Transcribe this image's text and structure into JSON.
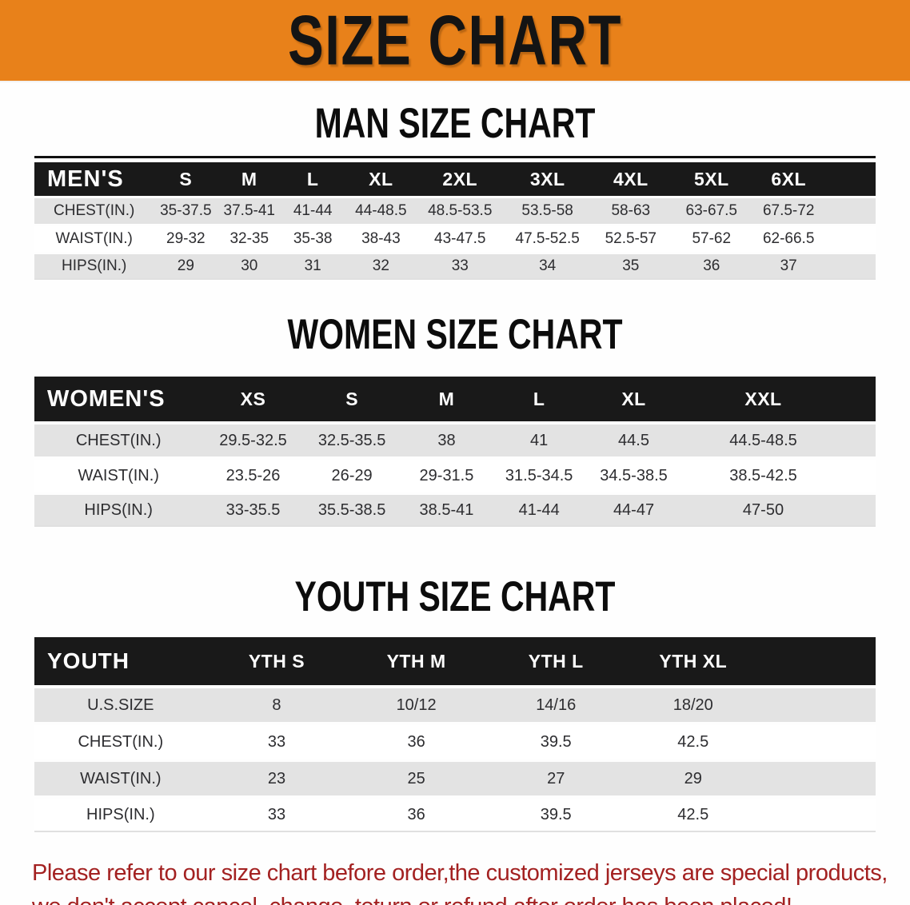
{
  "colors": {
    "banner_bg": "#e8811a",
    "bar_bg": "#191919",
    "stripe": "#e3e3e3",
    "footer_text": "#a32121"
  },
  "banner": {
    "title": "SIZE CHART"
  },
  "sections": [
    {
      "heading": "MAN SIZE CHART",
      "table": {
        "label_header": "MEN'S",
        "columns": [
          "S",
          "M",
          "L",
          "XL",
          "2XL",
          "3XL",
          "4XL",
          "5XL",
          "6XL"
        ],
        "rows": [
          {
            "label": "CHEST(IN.)",
            "values": [
              "35-37.5",
              "37.5-41",
              "41-44",
              "44-48.5",
              "48.5-53.5",
              "53.5-58",
              "58-63",
              "63-67.5",
              "67.5-72"
            ]
          },
          {
            "label": "WAIST(IN.)",
            "values": [
              "29-32",
              "32-35",
              "35-38",
              "38-43",
              "43-47.5",
              "47.5-52.5",
              "52.5-57",
              "57-62",
              "62-66.5"
            ]
          },
          {
            "label": "HIPS(IN.)",
            "values": [
              "29",
              "30",
              "31",
              "32",
              "33",
              "34",
              "35",
              "36",
              "37"
            ]
          }
        ]
      }
    },
    {
      "heading": "WOMEN SIZE CHART",
      "table": {
        "label_header": "WOMEN'S",
        "columns": [
          "XS",
          "S",
          "M",
          "L",
          "XL",
          "XXL"
        ],
        "rows": [
          {
            "label": "CHEST(IN.)",
            "values": [
              "29.5-32.5",
              "32.5-35.5",
              "38",
              "41",
              "44.5",
              "44.5-48.5"
            ]
          },
          {
            "label": "WAIST(IN.)",
            "values": [
              "23.5-26",
              "26-29",
              "29-31.5",
              "31.5-34.5",
              "34.5-38.5",
              "38.5-42.5"
            ]
          },
          {
            "label": "HIPS(IN.)",
            "values": [
              "33-35.5",
              "35.5-38.5",
              "38.5-41",
              "41-44",
              "44-47",
              "47-50"
            ]
          }
        ]
      }
    },
    {
      "heading": "YOUTH SIZE CHART",
      "table": {
        "label_header": "YOUTH",
        "columns": [
          "YTH S",
          "YTH M",
          "YTH L",
          "YTH XL"
        ],
        "rows": [
          {
            "label": "U.S.SIZE",
            "values": [
              "8",
              "10/12",
              "14/16",
              "18/20"
            ]
          },
          {
            "label": "CHEST(IN.)",
            "values": [
              "33",
              "36",
              "39.5",
              "42.5"
            ]
          },
          {
            "label": "WAIST(IN.)",
            "values": [
              "23",
              "25",
              "27",
              "29"
            ]
          },
          {
            "label": "HIPS(IN.)",
            "values": [
              "33",
              "36",
              "39.5",
              "42.5"
            ]
          }
        ]
      }
    }
  ],
  "footer": {
    "line1": "Please refer to our size chart before order,the customized jerseys are special products,",
    "line2": "we don't accept cancel, change, teturn or refund after order has been placed!"
  }
}
